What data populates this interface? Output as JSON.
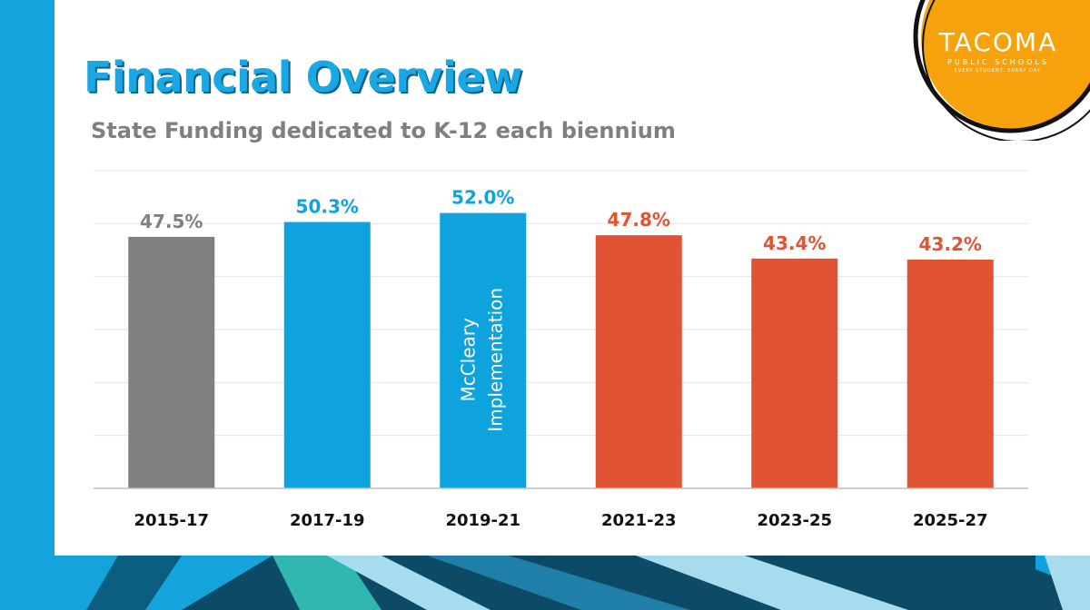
{
  "page": {
    "title": "Financial Overview",
    "subtitle": "State Funding dedicated to K-12 each biennium"
  },
  "logo": {
    "name": "TACOMA",
    "sub": "PUBLIC SCHOOLS",
    "tagline": "EVERY STUDENT. EVERY DAY.",
    "color": "#f5a20c"
  },
  "colors": {
    "accent_blue": "#19a8e3",
    "gray": "#808080",
    "blue": "#0fa3dd",
    "orange": "#e05433",
    "dark_teal": "#0d4f6b",
    "teal": "#2fb7b0",
    "light_blue": "#a7dcef"
  },
  "chart_data": {
    "type": "bar",
    "categories": [
      "2015-17",
      "2017-19",
      "2019-21",
      "2021-23",
      "2023-25",
      "2025-27"
    ],
    "values": [
      47.5,
      50.3,
      52.0,
      47.8,
      43.4,
      43.2
    ],
    "labels": [
      "47.5%",
      "50.3%",
      "52.0%",
      "47.8%",
      "43.4%",
      "43.2%"
    ],
    "bar_colors": [
      "#808080",
      "#0fa3dd",
      "#0fa3dd",
      "#e05433",
      "#e05433",
      "#e05433"
    ],
    "label_colors": [
      "#808080",
      "#0fa3dd",
      "#0fa3dd",
      "#e05433",
      "#e05433",
      "#e05433"
    ],
    "ylim": [
      0,
      60
    ],
    "grid": true,
    "title": "",
    "xlabel": "",
    "ylabel": "",
    "annotation": {
      "category": "2019-21",
      "lines": [
        "McCleary",
        "Implementation"
      ]
    }
  }
}
